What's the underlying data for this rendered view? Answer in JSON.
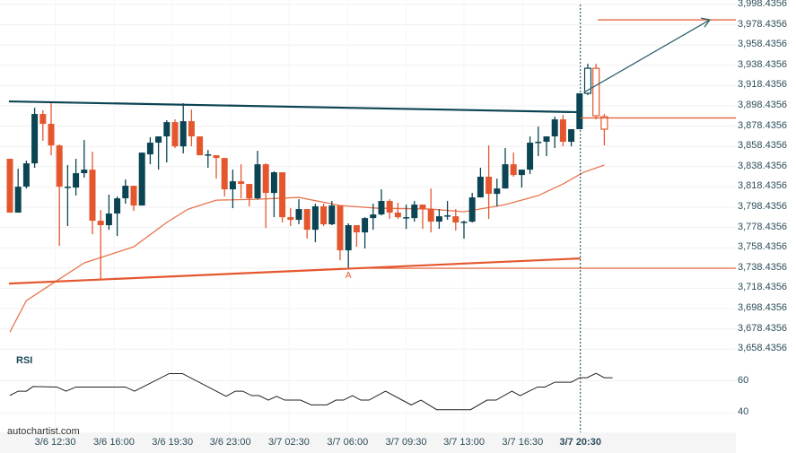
{
  "chart_data": {
    "type": "candlestick",
    "title": "",
    "colors": {
      "bull": "#0b4452",
      "bear": "#e4572e",
      "ma": "#e8754f",
      "grid": "#f0f0f0"
    },
    "price_ticks": [
      "3,998.4356",
      "3,978.4356",
      "3,958.4356",
      "3,938.4356",
      "3,918.4356",
      "3,898.4356",
      "3,878.4356",
      "3,858.4356",
      "3,838.4356",
      "3,818.4356",
      "3,798.4356",
      "3,778.4356",
      "3,758.4356",
      "3,738.4356",
      "3,718.4356",
      "3,698.4356",
      "3,678.4356",
      "3,658.4356"
    ],
    "price_tick_values": [
      3998.4356,
      3978.4356,
      3958.4356,
      3938.4356,
      3918.4356,
      3898.4356,
      3878.4356,
      3858.4356,
      3838.4356,
      3818.4356,
      3798.4356,
      3778.4356,
      3758.4356,
      3738.4356,
      3718.4356,
      3698.4356,
      3678.4356,
      3658.4356
    ],
    "x_labels": [
      {
        "label": "3/6 12:30",
        "idx": 5.5
      },
      {
        "label": "3/6 16:00",
        "idx": 12.6
      },
      {
        "label": "3/6 19:30",
        "idx": 19.7
      },
      {
        "label": "3/6 23:00",
        "idx": 26.7
      },
      {
        "label": "3/7 02:30",
        "idx": 33.8
      },
      {
        "label": "3/7 06:00",
        "idx": 40.9
      },
      {
        "label": "3/7 09:30",
        "idx": 48
      },
      {
        "label": "3/7 13:00",
        "idx": 55
      },
      {
        "label": "3/7 16:30",
        "idx": 62.1
      },
      {
        "label": "3/7 20:30",
        "idx": 69.1
      }
    ],
    "current_idx": 69.1,
    "candles_ohlc": [
      [
        3846.2,
        3846.2,
        3793.1,
        3793.1
      ],
      [
        3793.1,
        3836.4,
        3793.1,
        3818.7
      ],
      [
        3818.7,
        3844.4,
        3816.9,
        3841.7
      ],
      [
        3841.7,
        3896.6,
        3837.3,
        3890.4
      ],
      [
        3890.4,
        3894.0,
        3863.9,
        3880.7
      ],
      [
        3880.7,
        3902.8,
        3849.7,
        3859.4
      ],
      [
        3859.4,
        3860.3,
        3760.3,
        3818.7
      ],
      [
        3818.7,
        3840.0,
        3779.8,
        3818.7
      ],
      [
        3817.8,
        3846.2,
        3809.9,
        3832.0
      ],
      [
        3832.0,
        3864.7,
        3827.6,
        3835.5
      ],
      [
        3835.5,
        3853.2,
        3771.8,
        3785.1
      ],
      [
        3785.1,
        3795.7,
        3726.7,
        3780.7
      ],
      [
        3780.7,
        3810.8,
        3776.2,
        3792.2
      ],
      [
        3792.2,
        3809.0,
        3770.0,
        3807.2
      ],
      [
        3807.2,
        3825.8,
        3801.9,
        3819.6
      ],
      [
        3819.6,
        3819.6,
        3794.8,
        3800.1
      ],
      [
        3800.1,
        3852.3,
        3800.1,
        3852.3
      ],
      [
        3850.6,
        3867.4,
        3840.8,
        3862.1
      ],
      [
        3862.1,
        3868.3,
        3835.5,
        3868.3
      ],
      [
        3868.3,
        3884.2,
        3842.6,
        3882.4
      ],
      [
        3882.4,
        3885.1,
        3856.8,
        3858.5
      ],
      [
        3858.5,
        3901.0,
        3851.5,
        3883.3
      ],
      [
        3883.3,
        3894.8,
        3858.5,
        3868.3
      ],
      [
        3868.3,
        3868.3,
        3849.7,
        3849.7
      ],
      [
        3850.6,
        3855.0,
        3837.3,
        3850.6
      ],
      [
        3849.7,
        3849.7,
        3826.7,
        3847.0
      ],
      [
        3847.0,
        3847.0,
        3809.0,
        3816.1
      ],
      [
        3816.1,
        3835.5,
        3797.5,
        3824.0
      ],
      [
        3824.0,
        3840.8,
        3807.2,
        3821.4
      ],
      [
        3821.4,
        3821.4,
        3799.3,
        3807.2
      ],
      [
        3807.2,
        3854.1,
        3806.3,
        3840.8
      ],
      [
        3840.8,
        3841.7,
        3778.0,
        3812.5
      ],
      [
        3812.5,
        3833.8,
        3788.6,
        3832.9
      ],
      [
        3832.9,
        3832.9,
        3783.4,
        3788.6
      ],
      [
        3788.6,
        3797.5,
        3779.8,
        3786.0
      ],
      [
        3786.0,
        3806.3,
        3781.6,
        3796.6
      ],
      [
        3796.6,
        3796.6,
        3767.4,
        3776.2
      ],
      [
        3776.2,
        3801.9,
        3763.9,
        3799.3
      ],
      [
        3799.3,
        3801.9,
        3779.8,
        3781.6
      ],
      [
        3781.6,
        3804.6,
        3780.7,
        3800.1
      ],
      [
        3800.1,
        3800.1,
        3746.1,
        3755.9
      ],
      [
        3755.9,
        3782.5,
        3738.2,
        3780.7
      ],
      [
        3780.7,
        3780.7,
        3759.4,
        3773.6
      ],
      [
        3773.6,
        3788.6,
        3757.7,
        3787.7
      ],
      [
        3787.7,
        3801.9,
        3776.2,
        3791.3
      ],
      [
        3791.3,
        3816.1,
        3790.4,
        3804.6
      ],
      [
        3804.6,
        3806.3,
        3786.9,
        3793.1
      ],
      [
        3793.1,
        3802.8,
        3786.9,
        3788.6
      ],
      [
        3788.6,
        3801.0,
        3777.1,
        3788.6
      ],
      [
        3787.7,
        3804.6,
        3784.2,
        3801.0
      ],
      [
        3801.0,
        3801.0,
        3777.1,
        3796.6
      ],
      [
        3796.6,
        3816.9,
        3773.6,
        3784.2
      ],
      [
        3784.2,
        3796.6,
        3777.1,
        3789.5
      ],
      [
        3790.4,
        3804.6,
        3786.0,
        3790.4
      ],
      [
        3789.5,
        3796.6,
        3775.4,
        3783.4
      ],
      [
        3784.2,
        3785.1,
        3767.4,
        3784.2
      ],
      [
        3784.2,
        3812.5,
        3783.4,
        3808.1
      ],
      [
        3808.1,
        3837.3,
        3808.1,
        3828.5
      ],
      [
        3828.5,
        3859.4,
        3786.9,
        3811.6
      ],
      [
        3811.6,
        3826.7,
        3799.3,
        3816.9
      ],
      [
        3816.9,
        3856.8,
        3816.9,
        3840.8
      ],
      [
        3840.8,
        3852.3,
        3828.5,
        3830.2
      ],
      [
        3830.2,
        3835.5,
        3817.8,
        3835.5
      ],
      [
        3835.5,
        3868.3,
        3831.1,
        3862.1
      ],
      [
        3863.0,
        3878.0,
        3848.8,
        3863.0
      ],
      [
        3863.0,
        3868.3,
        3848.8,
        3868.3
      ],
      [
        3868.3,
        3887.8,
        3856.8,
        3885.1
      ],
      [
        3885.1,
        3889.5,
        3858.5,
        3863.0
      ],
      [
        3863.0,
        3875.4,
        3858.5,
        3875.4
      ],
      [
        3875.4,
        3910.8,
        3875.4,
        3910.8
      ],
      [
        3910.8,
        3940.0,
        3909.0,
        3935.5
      ],
      [
        3935.5,
        3940.0,
        3885.1,
        3888.6
      ],
      [
        3887.8,
        3890.4,
        3859.4,
        3875.4
      ]
    ],
    "moving_average": [
      [
        0,
        3675.3
      ],
      [
        2,
        3706.3
      ],
      [
        4.5,
        3719.6
      ],
      [
        9,
        3743.5
      ],
      [
        15,
        3759.4
      ],
      [
        19,
        3783.4
      ],
      [
        21.6,
        3796.6
      ],
      [
        25,
        3805.4
      ],
      [
        30,
        3806.3
      ],
      [
        35,
        3808.1
      ],
      [
        40,
        3800.1
      ],
      [
        44.5,
        3797.5
      ],
      [
        51,
        3796.6
      ],
      [
        55,
        3793.9
      ],
      [
        60,
        3801.0
      ],
      [
        64,
        3809.9
      ],
      [
        67,
        3821.4
      ],
      [
        69.5,
        3832.9
      ],
      [
        72,
        3840.0
      ]
    ],
    "resistance_line": [
      [
        0,
        3902.8
      ],
      [
        69.1,
        3892.2
      ]
    ],
    "support_line": [
      [
        0,
        3723.1
      ],
      [
        69.1,
        3747.9
      ]
    ],
    "breakout_level": 3886.5,
    "target_level": 3983.3,
    "target_arrow": [
      [
        69.5,
        3911.5
      ],
      [
        85,
        3983.3
      ]
    ],
    "support_level": 3738.2,
    "point_label": {
      "text": "A",
      "idx": 41,
      "price": 3738.2
    },
    "rsi": {
      "title": "RSI",
      "ticks": [
        "60",
        "40"
      ],
      "tick_values": [
        60,
        40
      ],
      "points": [
        [
          0,
          50.8
        ],
        [
          1,
          53.5
        ],
        [
          2,
          53.5
        ],
        [
          2.8,
          56.4
        ],
        [
          5.7,
          56.1
        ],
        [
          6.8,
          53.5
        ],
        [
          8,
          56.1
        ],
        [
          14,
          56.1
        ],
        [
          15.1,
          53.5
        ],
        [
          19.3,
          64.5
        ],
        [
          20.9,
          64.5
        ],
        [
          26.2,
          50.3
        ],
        [
          27.3,
          53.5
        ],
        [
          28.2,
          53.5
        ],
        [
          29.3,
          50.7
        ],
        [
          30.2,
          50.7
        ],
        [
          31.3,
          47.9
        ],
        [
          32.3,
          50.3
        ],
        [
          33.3,
          47.9
        ],
        [
          35.2,
          47.9
        ],
        [
          36.5,
          44.9
        ],
        [
          38.4,
          44.9
        ],
        [
          39.5,
          47.9
        ],
        [
          40.4,
          47.9
        ],
        [
          41.5,
          50.7
        ],
        [
          42.5,
          47.9
        ],
        [
          43.5,
          47.9
        ],
        [
          45.5,
          53.5
        ],
        [
          48.6,
          44.9
        ],
        [
          49.8,
          47.9
        ],
        [
          51.7,
          41.9
        ],
        [
          55.8,
          41.9
        ],
        [
          57.8,
          47.9
        ],
        [
          58.9,
          47.9
        ],
        [
          60.8,
          53.5
        ],
        [
          61.8,
          50.7
        ],
        [
          63.9,
          56.1
        ],
        [
          64.8,
          56.1
        ],
        [
          66,
          59.1
        ],
        [
          68,
          59.1
        ],
        [
          69,
          61.9
        ],
        [
          69.9,
          61.9
        ],
        [
          71,
          64.7
        ],
        [
          72,
          61.9
        ],
        [
          73,
          61.9
        ]
      ]
    }
  },
  "branding": "autochartist.com"
}
